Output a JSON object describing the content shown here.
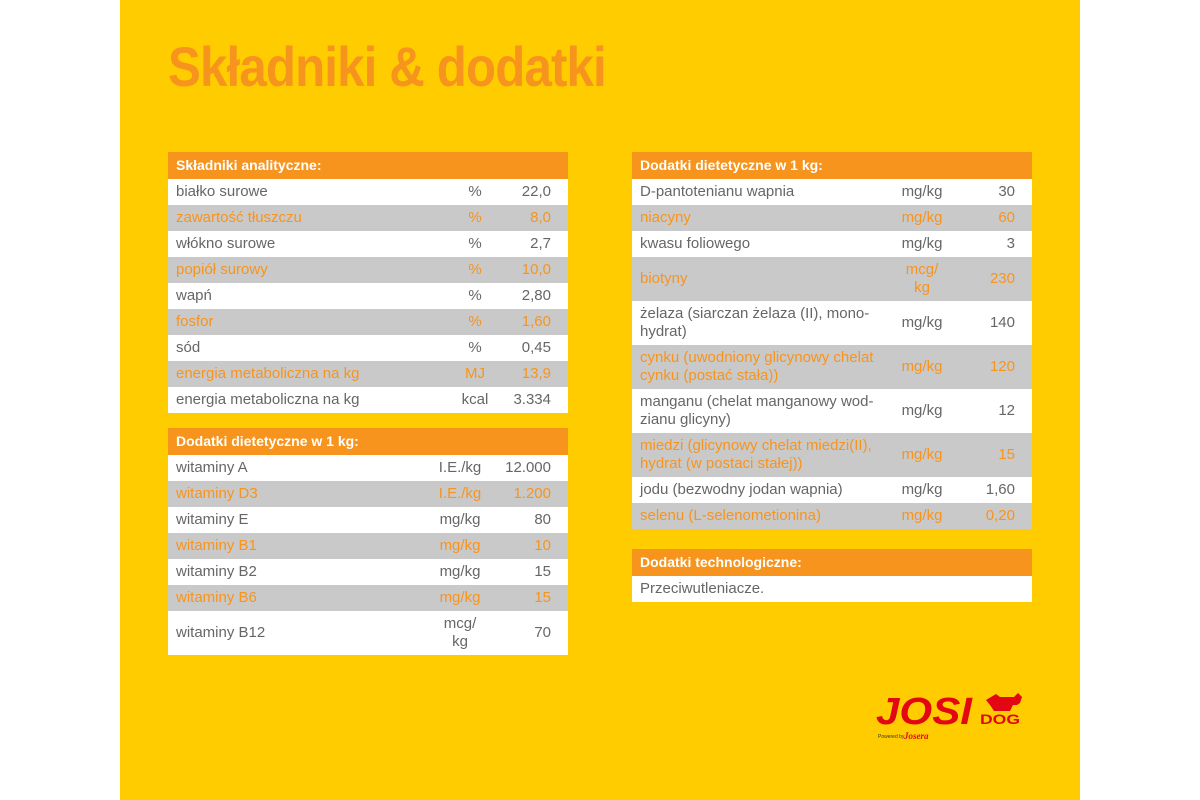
{
  "title": "Składniki & dodatki",
  "tables": [
    {
      "header": "Składniki analityczne:",
      "rows": [
        [
          "białko surowe",
          "%",
          "22,0"
        ],
        [
          "zawartość tłuszczu",
          "%",
          "8,0"
        ],
        [
          "włókno surowe",
          "%",
          "2,7"
        ],
        [
          "popiół surowy",
          "%",
          "10,0"
        ],
        [
          "wapń",
          "%",
          "2,80"
        ],
        [
          "fosfor",
          "%",
          "1,60"
        ],
        [
          "sód",
          "%",
          "0,45"
        ],
        [
          "energia metaboliczna na kg",
          "MJ",
          "13,9"
        ],
        [
          "energia metaboliczna na kg",
          "kcal",
          "3.334"
        ]
      ]
    },
    {
      "header": "Dodatki dietetyczne w 1 kg:",
      "rows": [
        [
          "witaminy A",
          "I.E./kg",
          "12.000"
        ],
        [
          "witaminy D3",
          "I.E./kg",
          "1.200"
        ],
        [
          "witaminy E",
          "mg/kg",
          "80"
        ],
        [
          "witaminy B1",
          "mg/kg",
          "10"
        ],
        [
          "witaminy B2",
          "mg/kg",
          "15"
        ],
        [
          "witaminy B6",
          "mg/kg",
          "15"
        ],
        [
          "witaminy B12",
          "mcg/\nkg",
          "70"
        ]
      ]
    },
    {
      "header": "Dodatki dietetyczne w 1 kg:",
      "rows": [
        [
          "D-pantotenianu wapnia",
          "mg/kg",
          "30"
        ],
        [
          "niacyny",
          "mg/kg",
          "60"
        ],
        [
          "kwasu foliowego",
          "mg/kg",
          "3"
        ],
        [
          "biotyny",
          "mcg/\nkg",
          "230"
        ],
        [
          "żelaza (siarczan żelaza (II), mono-\nhydrat)",
          "mg/kg",
          "140"
        ],
        [
          "cynku (uwodniony glicynowy chelat\ncynku (postać stała))",
          "mg/kg",
          "120"
        ],
        [
          "manganu (chelat manganowy wod-\nzianu glicyny)",
          "mg/kg",
          "12"
        ],
        [
          "miedzi (glicynowy chelat miedzi(II),\nhydrat (w postaci stałej))",
          "mg/kg",
          "15"
        ],
        [
          "jodu (bezwodny jodan wapnia)",
          "mg/kg",
          "1,60"
        ],
        [
          "selenu (L-selenometionina)",
          "mg/kg",
          "0,20"
        ]
      ]
    },
    {
      "header": "Dodatki technologiczne:",
      "rows": [
        [
          "Przeciwutleniacze."
        ]
      ]
    }
  ],
  "logo": {
    "brand": "JOSI",
    "sub": "DOG",
    "powered": "Powered by",
    "maker": "Josera"
  }
}
